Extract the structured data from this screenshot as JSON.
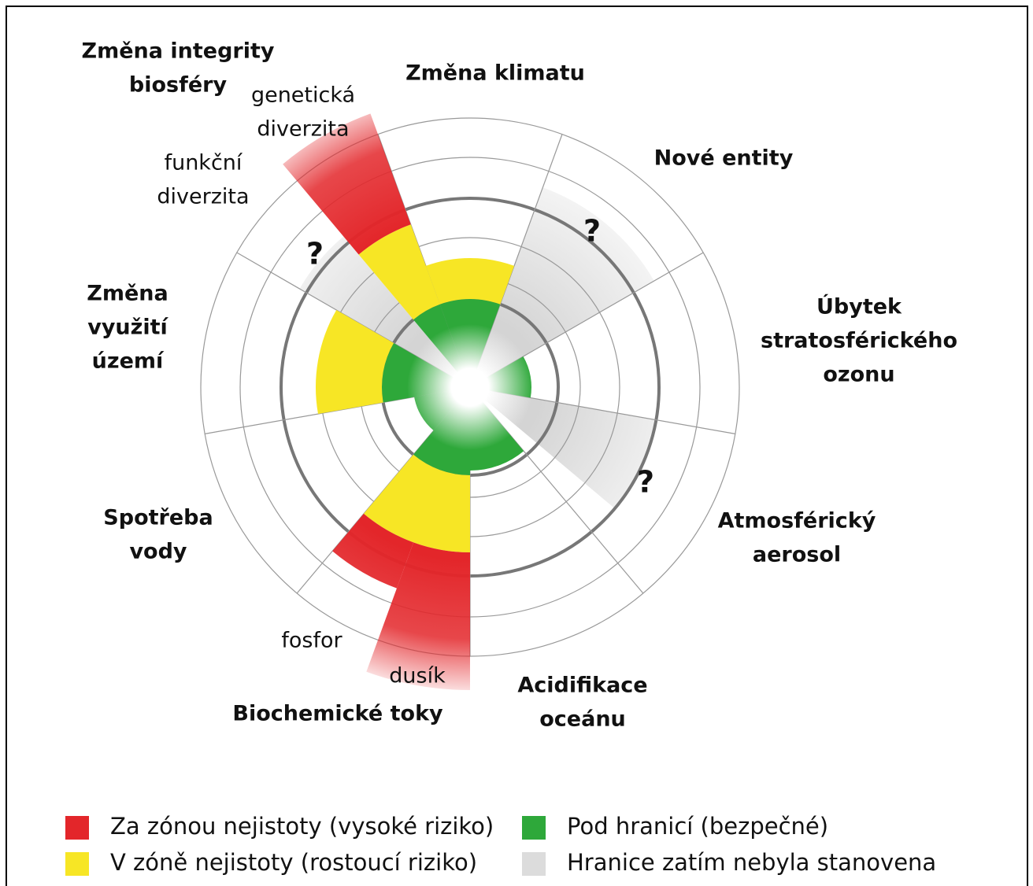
{
  "labels": {
    "biosphere": [
      "Změna integrity",
      "biosféry"
    ],
    "genetic": [
      "genetická",
      "diverzita"
    ],
    "functional": [
      "funkční",
      "diverzita"
    ],
    "climate": [
      "Změna klimatu"
    ],
    "novel": [
      "Nové entity"
    ],
    "ozone": [
      "Úbytek",
      "stratosférického",
      "ozonu"
    ],
    "aerosol": [
      "Atmosférický",
      "aerosol"
    ],
    "ocean": [
      "Acidifikace",
      "oceánu"
    ],
    "biochem": [
      "Biochemické toky"
    ],
    "phosphorus": [
      "fosfor"
    ],
    "nitrogen": [
      "dusík"
    ],
    "water": [
      "Spotřeba",
      "vody"
    ],
    "land": [
      "Změna",
      "využití",
      "území"
    ],
    "unknown": [
      "?",
      "?",
      "?"
    ]
  },
  "legend": [
    {
      "text": "Za zónou nejistoty (vysoké riziko)",
      "color": "#e3262a"
    },
    {
      "text": "V zóně nejistoty (rostoucí riziko)",
      "color": "#f7e625"
    },
    {
      "text": "Pod hranicí (bezpečné)",
      "color": "#2ea83a"
    },
    {
      "text": "Hranice zatím nebyla stanovena",
      "color": "#dcdcdc"
    }
  ]
}
